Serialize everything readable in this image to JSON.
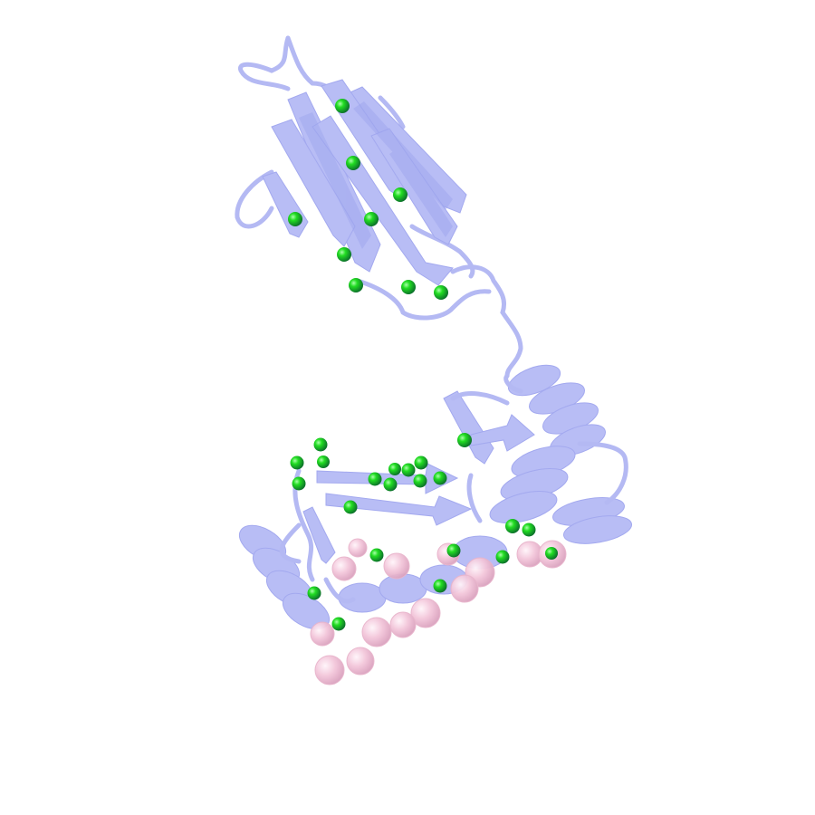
{
  "scene": {
    "background": "#ffffff",
    "cartoon_color": "#b8bdf5",
    "cartoon_dark": "#8f96ea",
    "ligand_sphere_color": "#22dd22",
    "ligand_sphere_dark": "#0a6a2a",
    "backbone_sphere_color": "#f3c6da",
    "backbone_sphere_dark": "#d9a0bd"
  }
}
